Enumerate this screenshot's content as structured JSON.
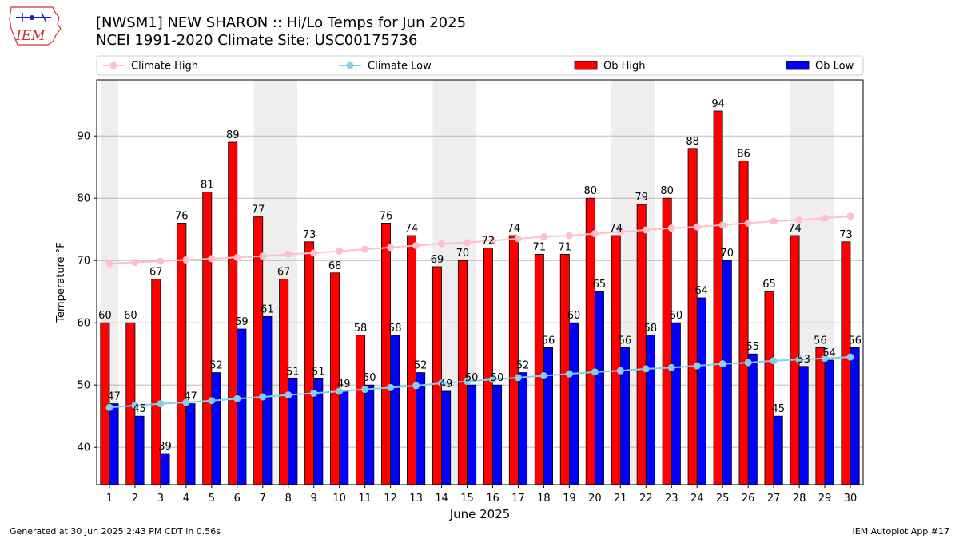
{
  "header": {
    "title_line1": "[NWSM1] NEW SHARON :: Hi/Lo Temps for Jun 2025",
    "title_line2": "NCEI 1991-2020 Climate Site: USC00175736",
    "logo_text": "IEM"
  },
  "footer": {
    "generated": "Generated at 30 Jun 2025 2:43 PM CDT in 0.56s",
    "app": "IEM Autoplot App #17"
  },
  "colors": {
    "ob_high": "#ff0000",
    "ob_low": "#0000ff",
    "climate_high": "#ffc0cb",
    "climate_low": "#87ceeb",
    "weekend_band": "#eeeeee",
    "grid": "#b0b0b0"
  },
  "chart_data": {
    "type": "bar",
    "xlabel": "June 2025",
    "ylabel": "Temperature °F",
    "ylim": [
      34,
      99
    ],
    "yticks": [
      40,
      50,
      60,
      70,
      80,
      90
    ],
    "grid": "horizontal",
    "legend_position": "top",
    "categories": [
      "1",
      "2",
      "3",
      "4",
      "5",
      "6",
      "7",
      "8",
      "9",
      "10",
      "11",
      "12",
      "13",
      "14",
      "15",
      "16",
      "17",
      "18",
      "19",
      "20",
      "21",
      "22",
      "23",
      "24",
      "25",
      "26",
      "27",
      "28",
      "29",
      "30"
    ],
    "weekend_bands": [
      [
        1,
        1
      ],
      [
        7,
        8
      ],
      [
        14,
        15
      ],
      [
        21,
        22
      ],
      [
        28,
        29
      ]
    ],
    "series": [
      {
        "name": "Ob High",
        "kind": "bar",
        "values": [
          60,
          60,
          67,
          76,
          81,
          89,
          77,
          67,
          73,
          68,
          58,
          76,
          74,
          69,
          70,
          72,
          74,
          71,
          71,
          80,
          74,
          79,
          80,
          88,
          94,
          86,
          65,
          74,
          56,
          73
        ]
      },
      {
        "name": "Ob Low",
        "kind": "bar",
        "values": [
          47,
          45,
          39,
          47,
          52,
          59,
          61,
          51,
          51,
          49,
          50,
          58,
          52,
          49,
          50,
          50,
          52,
          56,
          60,
          65,
          56,
          58,
          60,
          64,
          70,
          55,
          45,
          53,
          54,
          56
        ]
      },
      {
        "name": "Climate High",
        "kind": "line",
        "values": [
          69.5,
          69.7,
          69.9,
          70.1,
          70.3,
          70.5,
          70.7,
          71.0,
          71.2,
          71.5,
          71.8,
          72.1,
          72.4,
          72.7,
          72.9,
          73.2,
          73.5,
          73.8,
          74.0,
          74.3,
          74.6,
          74.9,
          75.2,
          75.4,
          75.7,
          76.0,
          76.3,
          76.5,
          76.8,
          77.1
        ]
      },
      {
        "name": "Climate Low",
        "kind": "line",
        "values": [
          46.4,
          46.7,
          47.0,
          47.2,
          47.5,
          47.8,
          48.1,
          48.4,
          48.7,
          49.0,
          49.3,
          49.6,
          49.9,
          50.3,
          50.6,
          50.9,
          51.2,
          51.5,
          51.8,
          52.1,
          52.3,
          52.6,
          52.8,
          53.1,
          53.4,
          53.6,
          53.9,
          54.1,
          54.3,
          54.5
        ]
      }
    ]
  }
}
